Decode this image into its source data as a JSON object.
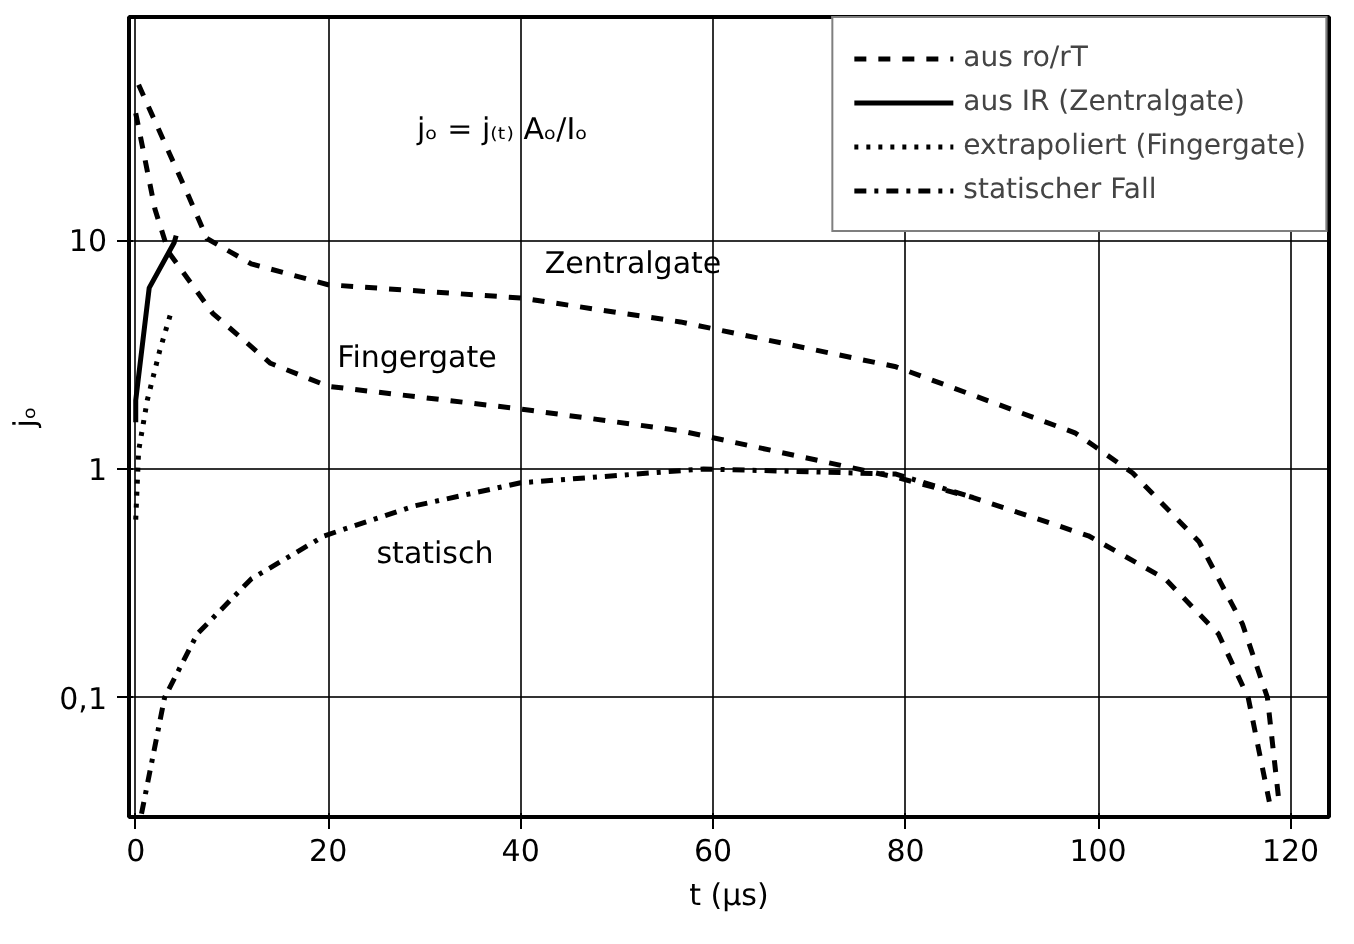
{
  "chart_data": {
    "type": "line",
    "xlabel": "t (µs)",
    "ylabel": "jₒ",
    "log": "y",
    "grid": true,
    "legend": "top right",
    "marker": "none",
    "xlim": [
      -0.7,
      124
    ],
    "xticks": [
      0,
      20,
      40,
      60,
      80,
      100,
      120
    ],
    "ylim": [
      0.03,
      95
    ],
    "yticks": [
      {
        "value": 0.1,
        "label": "0,1"
      },
      1,
      10
    ],
    "annotations": [
      "jₒ = j₍ₜ₎ Aₒ/Iₒ",
      "Zentralgate",
      "Fingergate",
      "statisch"
    ],
    "series": [
      {
        "name": "aus ro/rT",
        "color": "#000000",
        "line_style": "dashed",
        "x": [
          0.3,
          5.5,
          7.4,
          12,
          20,
          40,
          56.6,
          79,
          97.6,
          99.6,
          103.6,
          110.5,
          115,
          117.6,
          118.8
        ],
        "values": [
          48,
          15.6,
          10.2,
          7.9,
          6.4,
          5.6,
          4.4,
          2.8,
          1.44,
          1.26,
          0.96,
          0.48,
          0.21,
          0.1,
          0.035
        ]
      },
      {
        "color": "#000000",
        "line_style": "dashed",
        "x": [
          0,
          2,
          3.4,
          8,
          14,
          20,
          40,
          56.6,
          79,
          87,
          99,
          107,
          112.5,
          115.6,
          117.8
        ],
        "values": [
          36,
          13.7,
          8.9,
          4.8,
          2.9,
          2.3,
          1.83,
          1.47,
          0.92,
          0.75,
          0.51,
          0.33,
          0.19,
          0.1,
          0.035
        ]
      },
      {
        "name": "aus IR (Zentralgate)",
        "color": "#000000",
        "line_style": "solid",
        "x": [
          0,
          0,
          1.4,
          4,
          4.2
        ],
        "values": [
          1.6,
          2.0,
          6.2,
          9.8,
          10.5
        ]
      },
      {
        "name": "extrapoliert (Fingergate)",
        "color": "#000000",
        "line_style": "dotted",
        "x": [
          0,
          0.3,
          1.2,
          2.5,
          3.7
        ],
        "values": [
          0.6,
          1.2,
          2.0,
          3.3,
          4.9
        ]
      },
      {
        "name": "statischer Fall",
        "color": "#000000",
        "line_style": "dashdot",
        "x": [
          0.6,
          3,
          6.4,
          12,
          19.6,
          29,
          40,
          59,
          79,
          87
        ],
        "values": [
          0.031,
          0.1,
          0.19,
          0.33,
          0.51,
          0.69,
          0.87,
          1.0,
          0.95,
          0.75
        ]
      }
    ]
  }
}
